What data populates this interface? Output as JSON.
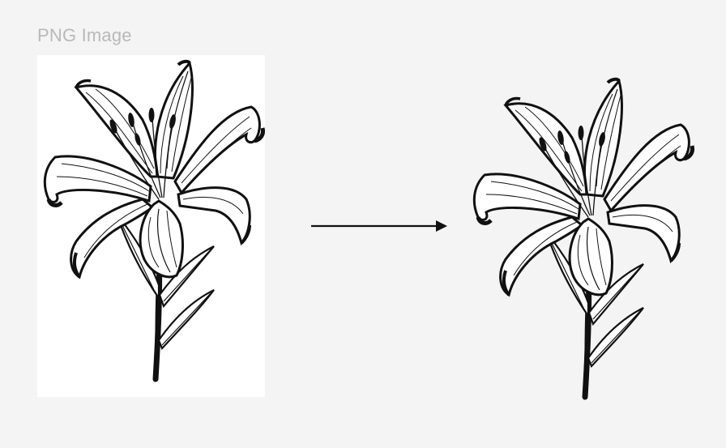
{
  "caption": "PNG Image",
  "icons": {
    "arrow": "arrow-right-icon",
    "illustration": "lily-flower-illustration"
  },
  "colors": {
    "background": "#f4f4f4",
    "card": "#ffffff",
    "ink": "#111111",
    "caption": "#b9b9b9"
  }
}
